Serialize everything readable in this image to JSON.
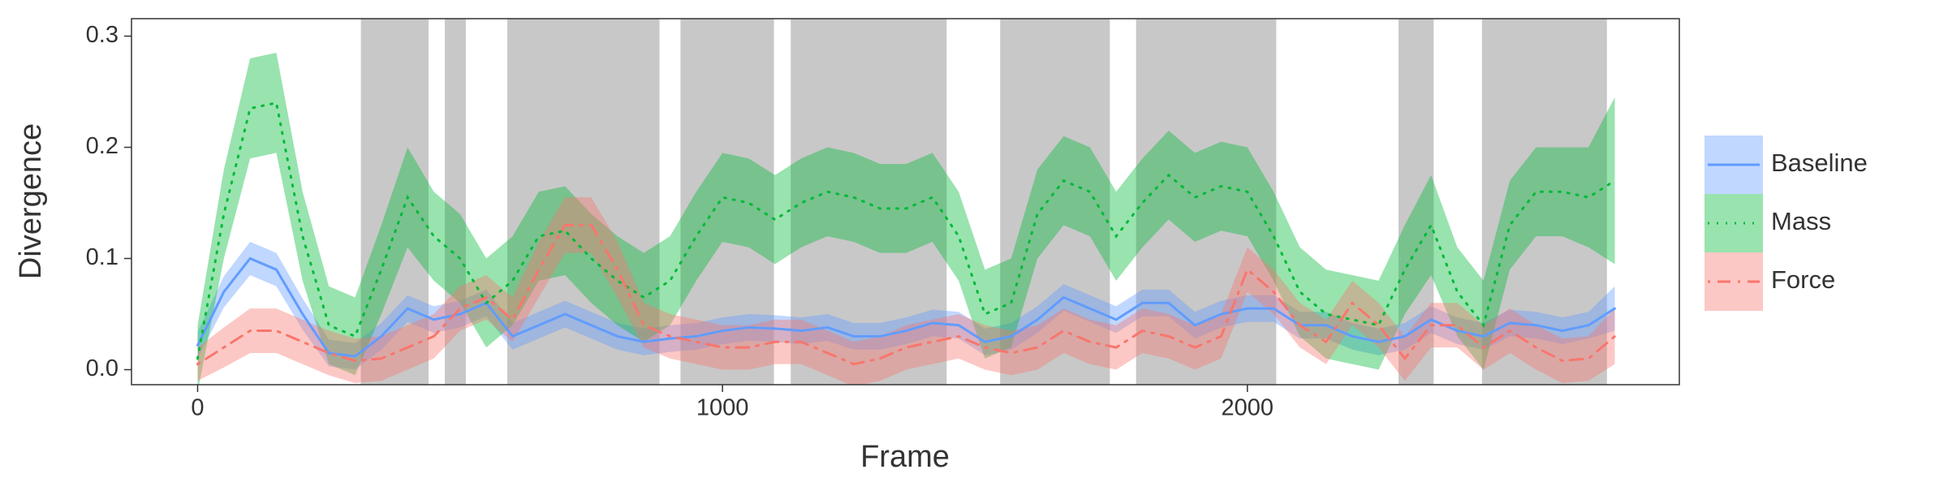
{
  "chart_data": {
    "type": "line",
    "xlabel": "Frame",
    "ylabel": "Divergence",
    "xlim": [
      -126,
      2823
    ],
    "ylim": [
      -0.0135,
      0.3157
    ],
    "xticks": [
      0,
      1000,
      2000
    ],
    "yticks": [
      {
        "value": 0,
        "label": "0.0"
      },
      0.1,
      0.2,
      0.3
    ],
    "shade_color": "#c8c8c8",
    "shaded_regions": [
      {
        "start": 311,
        "end": 440
      },
      {
        "start": 471,
        "end": 511
      },
      {
        "start": 590,
        "end": 880
      },
      {
        "start": 920,
        "end": 1098
      },
      {
        "start": 1130,
        "end": 1427
      },
      {
        "start": 1529,
        "end": 1738
      },
      {
        "start": 1788,
        "end": 2055
      },
      {
        "start": 2288,
        "end": 2355
      },
      {
        "start": 2447,
        "end": 2685
      }
    ],
    "x": [
      0,
      50,
      100,
      150,
      200,
      250,
      300,
      350,
      400,
      450,
      500,
      550,
      600,
      650,
      700,
      750,
      800,
      850,
      900,
      950,
      1000,
      1050,
      1100,
      1150,
      1200,
      1250,
      1300,
      1350,
      1400,
      1450,
      1500,
      1550,
      1600,
      1650,
      1700,
      1750,
      1800,
      1850,
      1900,
      1950,
      2000,
      2050,
      2100,
      2150,
      2200,
      2250,
      2300,
      2350,
      2400,
      2450,
      2500,
      2550,
      2600,
      2650,
      2700
    ],
    "series": [
      {
        "name": "Baseline",
        "color": "#619CFF",
        "dash": "solid",
        "values": [
          0.022,
          0.07,
          0.1,
          0.09,
          0.05,
          0.015,
          0.012,
          0.03,
          0.055,
          0.045,
          0.05,
          0.06,
          0.03,
          0.04,
          0.05,
          0.04,
          0.03,
          0.025,
          0.028,
          0.03,
          0.035,
          0.038,
          0.037,
          0.035,
          0.038,
          0.03,
          0.03,
          0.035,
          0.042,
          0.04,
          0.025,
          0.03,
          0.045,
          0.065,
          0.055,
          0.045,
          0.06,
          0.06,
          0.04,
          0.05,
          0.055,
          0.055,
          0.04,
          0.04,
          0.03,
          0.025,
          0.03,
          0.045,
          0.035,
          0.03,
          0.042,
          0.04,
          0.035,
          0.04,
          0.055
        ],
        "errors": [
          0.012,
          0.014,
          0.015,
          0.015,
          0.014,
          0.012,
          0.012,
          0.012,
          0.012,
          0.012,
          0.012,
          0.012,
          0.012,
          0.012,
          0.012,
          0.012,
          0.012,
          0.012,
          0.012,
          0.012,
          0.012,
          0.012,
          0.012,
          0.012,
          0.012,
          0.012,
          0.012,
          0.012,
          0.012,
          0.012,
          0.012,
          0.012,
          0.012,
          0.012,
          0.012,
          0.012,
          0.012,
          0.012,
          0.012,
          0.012,
          0.012,
          0.012,
          0.012,
          0.012,
          0.012,
          0.012,
          0.012,
          0.012,
          0.012,
          0.012,
          0.012,
          0.012,
          0.012,
          0.012,
          0.02
        ]
      },
      {
        "name": "Mass",
        "color": "#00BA38",
        "dash": "dotted",
        "values": [
          0.01,
          0.14,
          0.235,
          0.24,
          0.12,
          0.04,
          0.03,
          0.09,
          0.155,
          0.12,
          0.1,
          0.06,
          0.08,
          0.12,
          0.125,
          0.1,
          0.08,
          0.065,
          0.08,
          0.12,
          0.155,
          0.15,
          0.135,
          0.15,
          0.16,
          0.155,
          0.145,
          0.145,
          0.155,
          0.12,
          0.05,
          0.06,
          0.14,
          0.17,
          0.16,
          0.12,
          0.15,
          0.175,
          0.155,
          0.165,
          0.16,
          0.12,
          0.07,
          0.05,
          0.045,
          0.04,
          0.09,
          0.13,
          0.07,
          0.04,
          0.13,
          0.16,
          0.16,
          0.155,
          0.17
        ],
        "errors": [
          0.03,
          0.04,
          0.045,
          0.045,
          0.04,
          0.035,
          0.035,
          0.04,
          0.045,
          0.04,
          0.04,
          0.04,
          0.04,
          0.04,
          0.04,
          0.04,
          0.04,
          0.04,
          0.04,
          0.04,
          0.04,
          0.04,
          0.04,
          0.04,
          0.04,
          0.04,
          0.04,
          0.04,
          0.04,
          0.04,
          0.04,
          0.04,
          0.04,
          0.04,
          0.04,
          0.04,
          0.04,
          0.04,
          0.04,
          0.04,
          0.04,
          0.04,
          0.04,
          0.04,
          0.04,
          0.04,
          0.04,
          0.045,
          0.04,
          0.04,
          0.04,
          0.04,
          0.04,
          0.045,
          0.075
        ]
      },
      {
        "name": "Force",
        "color": "#F8766D",
        "dash": "dotdash",
        "values": [
          0.005,
          0.02,
          0.035,
          0.035,
          0.025,
          0.015,
          0.008,
          0.01,
          0.02,
          0.03,
          0.055,
          0.065,
          0.045,
          0.09,
          0.13,
          0.13,
          0.09,
          0.04,
          0.03,
          0.025,
          0.02,
          0.02,
          0.025,
          0.025,
          0.015,
          0.005,
          0.01,
          0.02,
          0.025,
          0.03,
          0.02,
          0.015,
          0.02,
          0.035,
          0.025,
          0.02,
          0.035,
          0.03,
          0.02,
          0.03,
          0.09,
          0.07,
          0.04,
          0.025,
          0.06,
          0.04,
          0.01,
          0.04,
          0.04,
          0.02,
          0.035,
          0.02,
          0.008,
          0.01,
          0.03
        ],
        "errors": [
          0.015,
          0.018,
          0.02,
          0.02,
          0.02,
          0.02,
          0.02,
          0.02,
          0.02,
          0.02,
          0.02,
          0.02,
          0.02,
          0.025,
          0.025,
          0.025,
          0.025,
          0.02,
          0.02,
          0.02,
          0.02,
          0.02,
          0.02,
          0.02,
          0.02,
          0.02,
          0.02,
          0.02,
          0.02,
          0.02,
          0.02,
          0.02,
          0.02,
          0.02,
          0.02,
          0.02,
          0.02,
          0.02,
          0.02,
          0.02,
          0.02,
          0.02,
          0.02,
          0.02,
          0.02,
          0.02,
          0.02,
          0.02,
          0.02,
          0.02,
          0.02,
          0.02,
          0.02,
          0.02,
          0.025
        ]
      }
    ],
    "legend": "right"
  }
}
